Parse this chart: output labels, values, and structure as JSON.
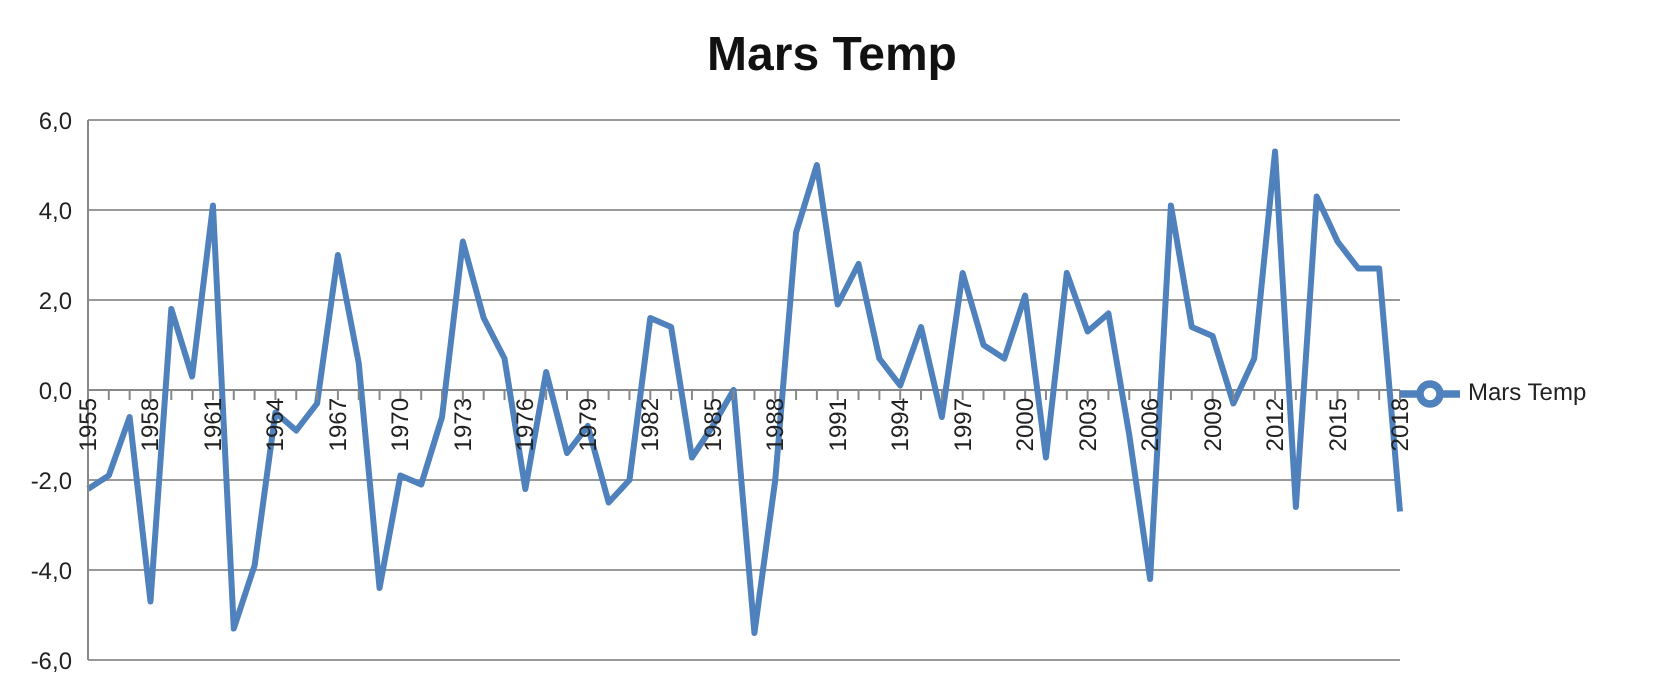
{
  "chart_data": {
    "type": "line",
    "title": "Mars Temp",
    "categories": [
      "1955",
      null,
      null,
      "1958",
      null,
      null,
      "1961",
      null,
      null,
      "1964",
      null,
      null,
      "1967",
      null,
      null,
      "1970",
      null,
      null,
      "1973",
      null,
      null,
      "1976",
      null,
      null,
      "1979",
      null,
      null,
      "1982",
      null,
      null,
      "1985",
      null,
      null,
      "1988",
      null,
      null,
      "1991",
      null,
      null,
      "1994",
      null,
      null,
      "1997",
      null,
      null,
      "2000",
      null,
      null,
      "2003",
      null,
      null,
      "2006",
      null,
      null,
      "2009",
      null,
      null,
      "2012",
      null,
      null,
      "2015",
      null,
      null,
      "2018"
    ],
    "series": [
      {
        "name": "Mars Temp",
        "color": "#4f81bd",
        "values": [
          -2.2,
          -1.9,
          -0.6,
          -4.7,
          1.8,
          0.3,
          4.1,
          -5.3,
          -3.9,
          -0.5,
          -0.9,
          -0.3,
          3.0,
          0.6,
          -4.4,
          -1.9,
          -2.1,
          -0.6,
          3.3,
          1.6,
          0.7,
          -2.2,
          0.4,
          -1.4,
          -0.8,
          -2.5,
          -2.0,
          1.6,
          1.4,
          -1.5,
          -0.8,
          0.0,
          -5.4,
          -2.0,
          3.5,
          5.0,
          1.9,
          2.8,
          0.7,
          0.1,
          1.4,
          -0.6,
          2.6,
          1.0,
          0.7,
          2.1,
          -1.5,
          2.6,
          1.3,
          1.7,
          -1.0,
          -4.2,
          4.1,
          1.4,
          1.2,
          -0.3,
          0.7,
          5.3,
          -2.6,
          4.3,
          3.3,
          2.7,
          2.7,
          -2.7
        ]
      }
    ],
    "ylim": [
      -6,
      6
    ],
    "yticks": [
      {
        "value": -6,
        "label": "-6,0"
      },
      {
        "value": -4,
        "label": "-4,0"
      },
      {
        "value": -2,
        "label": "-2,0"
      },
      {
        "value": 0,
        "label": "0,0"
      },
      {
        "value": 2,
        "label": "2,0"
      },
      {
        "value": 4,
        "label": "4,0"
      },
      {
        "value": 6,
        "label": "6,0"
      }
    ],
    "grid": "y",
    "legend": "right",
    "marker": "none",
    "line_style": "solid"
  }
}
